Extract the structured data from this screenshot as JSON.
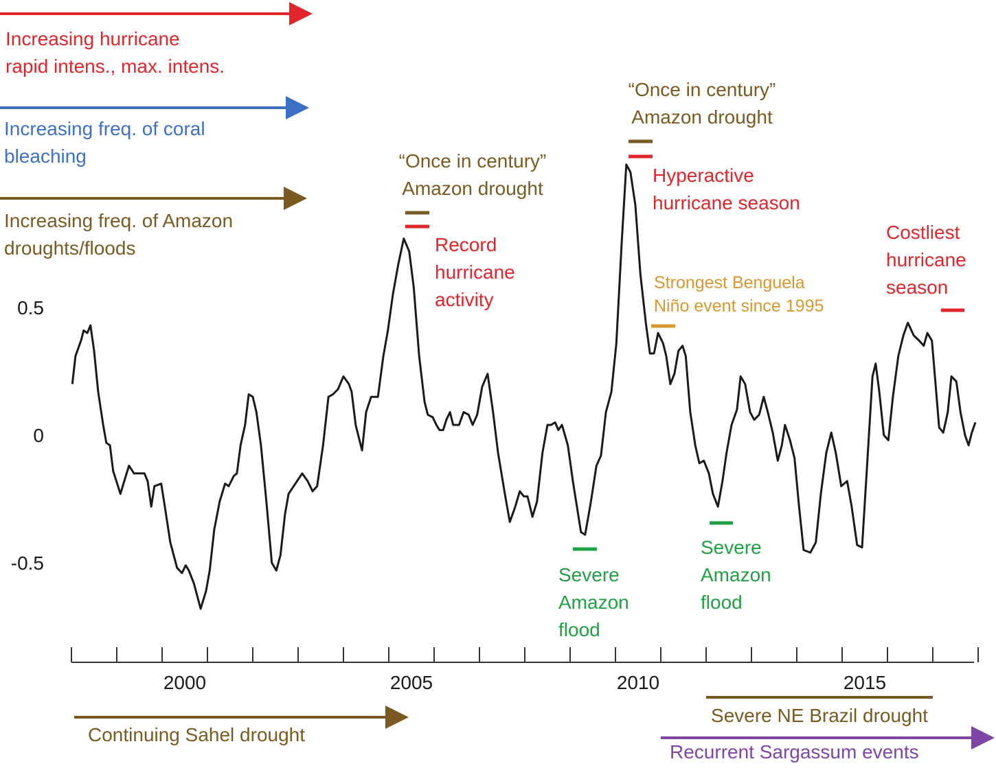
{
  "chart_data": {
    "type": "line",
    "x": [
      1998.02,
      1998.09,
      1998.21,
      1998.27,
      1998.35,
      1998.42,
      1998.5,
      1998.59,
      1998.7,
      1998.77,
      1998.85,
      1998.92,
      1999.08,
      1999.2,
      1999.27,
      1999.38,
      1999.61,
      1999.68,
      1999.76,
      1999.83,
      1999.98,
      2000.06,
      2000.18,
      2000.33,
      2000.44,
      2000.52,
      2000.59,
      2000.7,
      2000.85,
      2000.97,
      2001.05,
      2001.15,
      2001.27,
      2001.39,
      2001.47,
      2001.58,
      2001.65,
      2001.73,
      2001.83,
      2001.91,
      2002.0,
      2002.08,
      2002.18,
      2002.3,
      2002.42,
      2002.52,
      2002.61,
      2002.71,
      2002.79,
      2002.94,
      2003.09,
      2003.21,
      2003.32,
      2003.42,
      2003.55,
      2003.67,
      2003.77,
      2003.88,
      2004.0,
      2004.12,
      2004.18,
      2004.27,
      2004.41,
      2004.5,
      2004.61,
      2004.76,
      2004.88,
      2004.98,
      2005.09,
      2005.21,
      2005.33,
      2005.45,
      2005.55,
      2005.67,
      2005.79,
      2005.86,
      2005.97,
      2006.05,
      2006.12,
      2006.2,
      2006.27,
      2006.35,
      2006.42,
      2006.55,
      2006.65,
      2006.76,
      2006.85,
      2006.95,
      2007.06,
      2007.18,
      2007.3,
      2007.41,
      2007.56,
      2007.67,
      2007.79,
      2007.89,
      2007.98,
      2008.06,
      2008.17,
      2008.27,
      2008.39,
      2008.5,
      2008.58,
      2008.67,
      2008.74,
      2008.82,
      2008.95,
      2009.06,
      2009.15,
      2009.24,
      2009.33,
      2009.45,
      2009.58,
      2009.68,
      2009.79,
      2009.91,
      2010.02,
      2010.14,
      2010.24,
      2010.33,
      2010.44,
      2010.55,
      2010.67,
      2010.76,
      2010.85,
      2010.94,
      2011.05,
      2011.12,
      2011.21,
      2011.3,
      2011.39,
      2011.48,
      2011.55,
      2011.65,
      2011.76,
      2011.85,
      2011.95,
      2012.06,
      2012.15,
      2012.26,
      2012.36,
      2012.45,
      2012.56,
      2012.68,
      2012.76,
      2012.86,
      2012.97,
      2013.06,
      2013.17,
      2013.27,
      2013.36,
      2013.47,
      2013.58,
      2013.67,
      2013.74,
      2013.85,
      2013.95,
      2014.05,
      2014.15,
      2014.3,
      2014.42,
      2014.53,
      2014.65,
      2014.76,
      2014.86,
      2014.98,
      2015.11,
      2015.21,
      2015.33,
      2015.44,
      2015.55,
      2015.67,
      2015.74,
      2015.82,
      2015.92,
      2016.02,
      2016.12,
      2016.24,
      2016.35,
      2016.45,
      2016.58,
      2016.7,
      2016.8,
      2016.88,
      2016.98,
      2017.06,
      2017.14,
      2017.23,
      2017.33,
      2017.41,
      2017.52,
      2017.61,
      2017.71,
      2017.79,
      2017.86,
      2017.94
    ],
    "series": [
      {
        "color": "#1a1a1a",
        "values": [
          0.2,
          0.31,
          0.37,
          0.41,
          0.4,
          0.43,
          0.33,
          0.17,
          0.04,
          -0.03,
          -0.04,
          -0.14,
          -0.23,
          -0.16,
          -0.12,
          -0.15,
          -0.15,
          -0.18,
          -0.28,
          -0.2,
          -0.19,
          -0.28,
          -0.42,
          -0.52,
          -0.54,
          -0.51,
          -0.53,
          -0.58,
          -0.68,
          -0.61,
          -0.53,
          -0.37,
          -0.26,
          -0.19,
          -0.2,
          -0.16,
          -0.15,
          -0.04,
          0.04,
          0.16,
          0.15,
          0.09,
          -0.04,
          -0.26,
          -0.5,
          -0.53,
          -0.47,
          -0.31,
          -0.23,
          -0.19,
          -0.15,
          -0.18,
          -0.22,
          -0.2,
          -0.04,
          0.15,
          0.16,
          0.18,
          0.23,
          0.2,
          0.17,
          0.04,
          -0.06,
          0.09,
          0.15,
          0.15,
          0.31,
          0.41,
          0.55,
          0.67,
          0.77,
          0.72,
          0.58,
          0.31,
          0.13,
          0.08,
          0.07,
          0.04,
          0.02,
          0.02,
          0.06,
          0.09,
          0.04,
          0.04,
          0.09,
          0.08,
          0.04,
          0.08,
          0.19,
          0.24,
          0.09,
          -0.07,
          -0.23,
          -0.34,
          -0.28,
          -0.22,
          -0.24,
          -0.24,
          -0.32,
          -0.26,
          -0.07,
          0.04,
          0.04,
          0.05,
          0.02,
          0.04,
          -0.04,
          -0.18,
          -0.28,
          -0.38,
          -0.39,
          -0.27,
          -0.12,
          -0.08,
          0.09,
          0.17,
          0.36,
          0.76,
          1.06,
          1.03,
          0.9,
          0.63,
          0.44,
          0.32,
          0.32,
          0.4,
          0.36,
          0.31,
          0.2,
          0.24,
          0.33,
          0.35,
          0.31,
          0.09,
          -0.04,
          -0.11,
          -0.1,
          -0.15,
          -0.23,
          -0.28,
          -0.18,
          -0.07,
          0.04,
          0.1,
          0.23,
          0.2,
          0.09,
          0.06,
          0.08,
          0.15,
          0.09,
          0.01,
          -0.1,
          -0.04,
          0.04,
          -0.02,
          -0.09,
          -0.28,
          -0.45,
          -0.46,
          -0.42,
          -0.23,
          -0.07,
          0.01,
          -0.07,
          -0.2,
          -0.18,
          -0.28,
          -0.43,
          -0.44,
          -0.12,
          0.23,
          0.28,
          0.17,
          0.0,
          -0.02,
          0.15,
          0.31,
          0.39,
          0.44,
          0.39,
          0.37,
          0.35,
          0.4,
          0.37,
          0.2,
          0.03,
          0.01,
          0.09,
          0.23,
          0.21,
          0.09,
          0.0,
          -0.04,
          0.01,
          0.05
        ]
      }
    ],
    "xlim": [
      1998,
      2018
    ],
    "xticks": [
      {
        "value": 2000.5,
        "label": "2000"
      },
      {
        "value": 2005.5,
        "label": "2005"
      },
      {
        "value": 2010.5,
        "label": "2010"
      },
      {
        "value": 2015.5,
        "label": "2015"
      }
    ],
    "xtick_marks": [
      1998,
      1999,
      2000,
      2001,
      2002,
      2003,
      2004,
      2005,
      2006,
      2007,
      2008,
      2009,
      2010,
      2011,
      2012,
      2013,
      2014,
      2015,
      2016,
      2017,
      2018
    ],
    "ylim": [
      -0.8,
      1.1
    ],
    "yticks": [
      0.5,
      0,
      -0.5
    ],
    "grid": false,
    "annotations": [
      {
        "lines": [
          "Increasing hurricane",
          "rapid intens., max. intens."
        ],
        "color": "#e2252b"
      },
      {
        "lines": [
          "Increasing freq. of coral",
          "bleaching"
        ],
        "color": "#3c70c2"
      },
      {
        "lines": [
          "Increasing freq. of Amazon",
          "droughts/floods"
        ],
        "color": "#7a5a20"
      },
      {
        "lines": [
          "“Once in century”",
          "Amazon drought"
        ],
        "color": "#7a5a20"
      },
      {
        "lines": [
          "Record",
          "hurricane",
          "activity"
        ],
        "color": "#e2252b"
      },
      {
        "lines": [
          "“Once in century”",
          "Amazon drought"
        ],
        "color": "#7a5a20"
      },
      {
        "lines": [
          "Hyperactive",
          "hurricane season"
        ],
        "color": "#e2252b"
      },
      {
        "lines": [
          "Strongest Benguela",
          "Niño event since 1995"
        ],
        "color": "#d9982f"
      },
      {
        "lines": [
          "Costliest",
          "hurricane",
          "season"
        ],
        "color": "#e2252b"
      },
      {
        "lines": [
          "Severe",
          "Amazon",
          "flood"
        ],
        "color": "#21a043"
      },
      {
        "lines": [
          "Severe",
          "Amazon",
          "flood"
        ],
        "color": "#21a043"
      },
      {
        "lines": [
          "Continuing Sahel drought"
        ],
        "color": "#7a5a20"
      },
      {
        "lines": [
          "Severe NE Brazil drought"
        ],
        "color": "#7a5a20"
      },
      {
        "lines": [
          "Recurrent Sargassum events"
        ],
        "color": "#7d45a6"
      }
    ]
  }
}
